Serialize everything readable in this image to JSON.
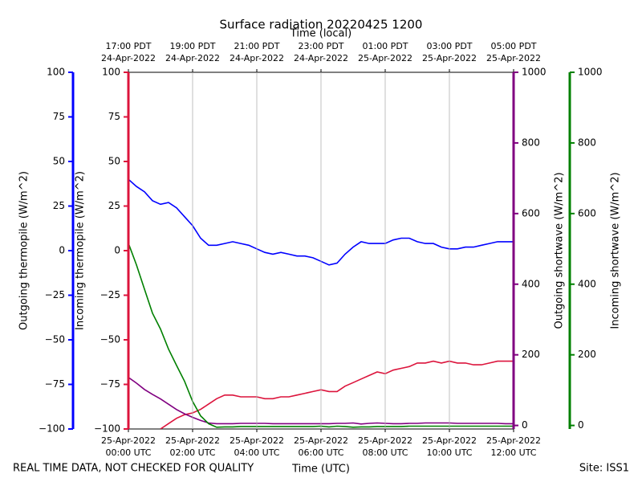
{
  "chart_data": {
    "type": "line",
    "title": "Surface radiation 20220425 1200",
    "x_label_top": "Time (local)",
    "x_label": "Time (UTC)",
    "note": "REAL TIME DATA, NOT CHECKED FOR QUALITY",
    "site": "Site: ISS1",
    "xlim": [
      0,
      12
    ],
    "xticks": [
      {
        "value": 0,
        "label": [
          "25-Apr-2022",
          "00:00 UTC"
        ]
      },
      {
        "value": 2,
        "label": [
          "25-Apr-2022",
          "02:00 UTC"
        ]
      },
      {
        "value": 4,
        "label": [
          "25-Apr-2022",
          "04:00 UTC"
        ]
      },
      {
        "value": 6,
        "label": [
          "25-Apr-2022",
          "06:00 UTC"
        ]
      },
      {
        "value": 8,
        "label": [
          "25-Apr-2022",
          "08:00 UTC"
        ]
      },
      {
        "value": 10,
        "label": [
          "25-Apr-2022",
          "10:00 UTC"
        ]
      },
      {
        "value": 12,
        "label": [
          "25-Apr-2022",
          "12:00 UTC"
        ]
      }
    ],
    "x2ticks": [
      {
        "value": 0,
        "label": [
          "17:00 PDT",
          "24-Apr-2022"
        ]
      },
      {
        "value": 2,
        "label": [
          "19:00 PDT",
          "24-Apr-2022"
        ]
      },
      {
        "value": 4,
        "label": [
          "21:00 PDT",
          "24-Apr-2022"
        ]
      },
      {
        "value": 6,
        "label": [
          "23:00 PDT",
          "24-Apr-2022"
        ]
      },
      {
        "value": 8,
        "label": [
          "01:00 PDT",
          "25-Apr-2022"
        ]
      },
      {
        "value": 10,
        "label": [
          "03:00 PDT",
          "25-Apr-2022"
        ]
      },
      {
        "value": 12,
        "label": [
          "05:00 PDT",
          "25-Apr-2022"
        ]
      }
    ],
    "grid": true,
    "axes": [
      {
        "label": "Outgoing thermopile (W/m^2)",
        "color": "#0000ff",
        "lim": [
          -100,
          100
        ],
        "ticks": [
          {
            "value": -100,
            "label": "−100"
          },
          {
            "value": -75,
            "label": "−75"
          },
          {
            "value": -50,
            "label": "−50"
          },
          {
            "value": -25,
            "label": "−25"
          },
          0,
          25,
          50,
          75,
          100
        ]
      },
      {
        "label": "Incoming thermopile (W/m^2)",
        "color": "#dc143c",
        "lim": [
          -100,
          100
        ],
        "ticks": [
          {
            "value": -100,
            "label": "−100"
          },
          {
            "value": -75,
            "label": "−75"
          },
          {
            "value": -50,
            "label": "−50"
          },
          {
            "value": -25,
            "label": "−25"
          },
          0,
          25,
          50,
          75,
          100
        ]
      },
      {
        "label": "Outgoing shortwave (W/m^2)",
        "color": "#800080",
        "lim": [
          -10,
          1000
        ],
        "ticks": [
          0,
          200,
          400,
          600,
          800,
          1000
        ]
      },
      {
        "label": "Incoming shortwave (W/m^2)",
        "color": "#008000",
        "lim": [
          -10,
          1000
        ],
        "ticks": [
          0,
          200,
          400,
          600,
          800,
          1000
        ]
      }
    ],
    "x": [
      0,
      0.25,
      0.5,
      0.75,
      1,
      1.25,
      1.5,
      1.75,
      2,
      2.25,
      2.5,
      2.75,
      3,
      3.25,
      3.5,
      3.75,
      4,
      4.25,
      4.5,
      4.75,
      5,
      5.25,
      5.5,
      5.75,
      6,
      6.25,
      6.5,
      6.75,
      7,
      7.25,
      7.5,
      7.75,
      8,
      8.25,
      8.5,
      8.75,
      9,
      9.25,
      9.5,
      9.75,
      10,
      10.25,
      10.5,
      10.75,
      11,
      11.25,
      11.5,
      11.75,
      12
    ],
    "series": [
      {
        "axis": 0,
        "color": "#0000ff",
        "values": [
          40,
          36,
          33,
          28,
          26,
          27,
          24,
          19,
          14,
          7,
          3,
          3,
          4,
          5,
          4,
          3,
          1,
          -1,
          -2,
          -1,
          -2,
          -3,
          -3,
          -4,
          -6,
          -8,
          -7,
          -2,
          2,
          5,
          4,
          4,
          4,
          6,
          7,
          7,
          5,
          4,
          4,
          2,
          1,
          1,
          2,
          2,
          3,
          4,
          5,
          5,
          5
        ]
      },
      {
        "axis": 1,
        "color": "#dc143c",
        "values": [
          null,
          null,
          null,
          null,
          -100,
          -97,
          -94,
          -92,
          -91,
          -89,
          -86,
          -83,
          -81,
          -81,
          -82,
          -82,
          -82,
          -83,
          -83,
          -82,
          -82,
          -81,
          -80,
          -79,
          -78,
          -79,
          -79,
          -76,
          -74,
          -72,
          -70,
          -68,
          -69,
          -67,
          -66,
          -65,
          -63,
          -63,
          -62,
          -63,
          -62,
          -63,
          -63,
          -64,
          -64,
          -63,
          -62,
          -62,
          -62
        ]
      },
      {
        "axis": 2,
        "color": "#800080",
        "values": [
          136,
          120,
          102,
          88,
          75,
          60,
          45,
          33,
          23,
          14,
          7,
          5,
          5,
          5,
          6,
          6,
          6,
          6,
          5,
          5,
          5,
          5,
          5,
          5,
          5,
          5,
          6,
          6,
          7,
          4,
          6,
          7,
          6,
          5,
          5,
          6,
          6,
          7,
          7,
          7,
          7,
          6,
          6,
          6,
          6,
          6,
          6,
          5,
          5
        ]
      },
      {
        "axis": 3,
        "color": "#008000",
        "values": [
          516,
          455,
          386,
          318,
          273,
          216,
          170,
          125,
          68,
          27,
          5,
          -5,
          -4,
          -4,
          -3,
          -3,
          -3,
          -3,
          -3,
          -3,
          -3,
          -3,
          -3,
          -3,
          -2,
          -4,
          -2,
          -3,
          -5,
          -4,
          -4,
          -3,
          -3,
          -3,
          -3,
          -2,
          -2,
          -2,
          -2,
          -2,
          -2,
          -2,
          -2,
          -2,
          -2,
          -2,
          -2,
          -2,
          -2
        ]
      }
    ]
  }
}
